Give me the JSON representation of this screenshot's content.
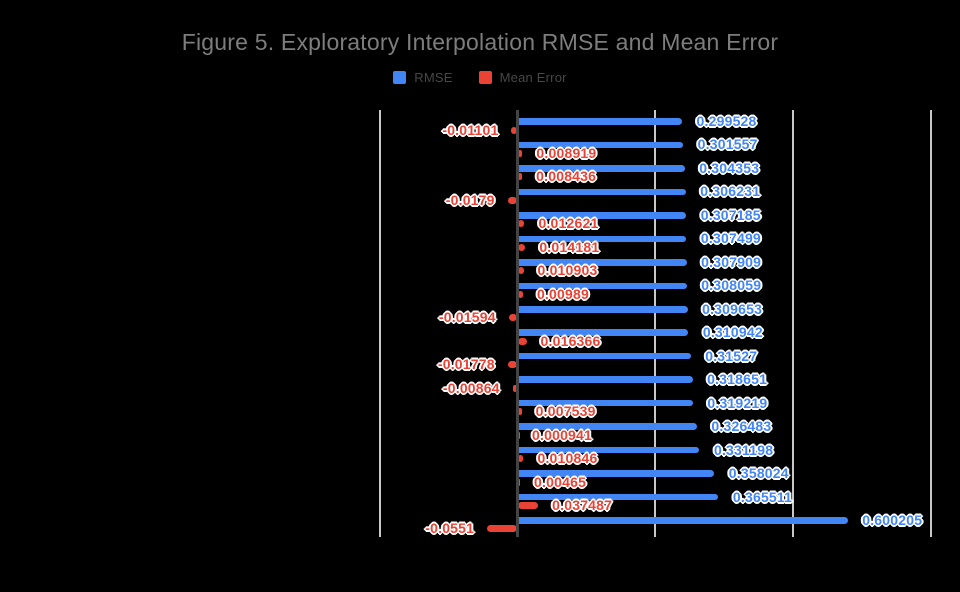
{
  "page": {
    "background": "#000000"
  },
  "header": {
    "title": "Figure 5. Exploratory Interpolation RMSE and Mean Error",
    "title_color": "#7d7d7d"
  },
  "legend": {
    "items": [
      {
        "label": "RMSE",
        "color": "#4285F4"
      },
      {
        "label": "Mean Error",
        "color": "#EA4335"
      }
    ],
    "text_color": "#474747"
  },
  "chart_data": {
    "type": "bar",
    "orientation": "horizontal",
    "title": "Figure 5. Exploratory Interpolation RMSE and Mean Error",
    "legend_position": "top",
    "grid": "vertical gridlines on",
    "xlim": [
      -0.25,
      0.75
    ],
    "gridline_step": 0.25,
    "axis_tick_labels_visible": false,
    "category_labels_visible": false,
    "num_rows": 18,
    "series": [
      {
        "name": "RMSE",
        "color": "#4285F4",
        "values": [
          0.299528,
          0.301557,
          0.304353,
          0.306231,
          0.307185,
          0.307499,
          0.307909,
          0.308059,
          0.309653,
          0.310942,
          0.31527,
          0.318651,
          0.319219,
          0.326483,
          0.331198,
          0.358024,
          0.365511,
          0.600205
        ],
        "labels": [
          "0.299528",
          "0.301557",
          "0.304353",
          "0.306231",
          "0.307185",
          "0.307499",
          "0.307909",
          "0.308059",
          "0.309653",
          "0.310942",
          "0.31527",
          "0.318651",
          "0.319219",
          "0.326483",
          "0.331198",
          "0.358024",
          "0.365511",
          "0.600205"
        ]
      },
      {
        "name": "Mean Error",
        "color": "#EA4335",
        "values": [
          -0.01101,
          0.008919,
          0.008436,
          -0.0179,
          0.012621,
          0.014181,
          0.010903,
          0.00989,
          -0.01594,
          0.016366,
          -0.01778,
          -0.00864,
          0.007539,
          0.000941,
          0.010846,
          0.00465,
          0.037487,
          -0.0551
        ],
        "labels": [
          "-0.01101",
          "0.008919",
          "0.008436",
          "-0.0179",
          "0.012621",
          "0.014181",
          "0.010903",
          "0.00989",
          "-0.01594",
          "0.016366",
          "-0.01778",
          "-0.00864",
          "0.007539",
          "0.000941",
          "0.010846",
          "0.00465",
          "0.037487",
          "-0.0551"
        ]
      }
    ],
    "colors": {
      "gridline": "#c8c8c8",
      "axis_baseline": "#444444",
      "value_label_halo": "#ffffff"
    }
  }
}
